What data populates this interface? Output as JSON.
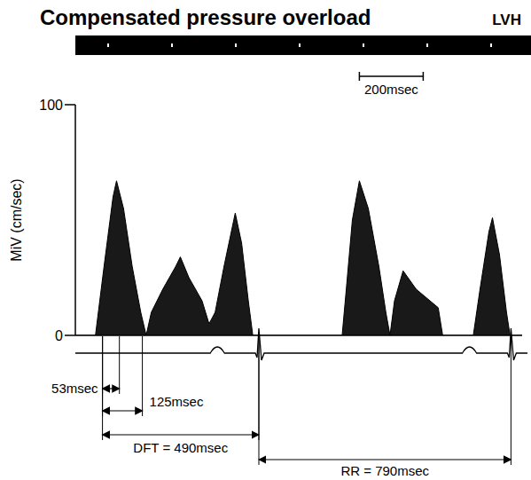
{
  "chart_data": {
    "type": "area",
    "title": "Compensated pressure overload",
    "subtitle": "LVH",
    "y_label": "MiV (cm/sec)",
    "x": [
      0,
      63,
      90,
      118,
      129,
      151,
      178,
      205,
      222,
      238,
      274,
      315,
      329,
      356,
      397,
      419,
      438,
      466,
      501,
      521,
      542,
      556,
      836,
      849,
      868,
      890,
      918,
      951,
      973,
      986,
      1000,
      1027,
      1068,
      1137,
      1151,
      1247,
      1268,
      1296,
      1307,
      1329,
      1351,
      1362,
      1400
    ],
    "values": [
      0,
      0,
      30,
      60,
      67,
      55,
      30,
      10,
      0,
      10,
      20,
      30,
      34,
      25,
      15,
      5,
      10,
      30,
      53,
      40,
      15,
      0,
      0,
      20,
      50,
      67,
      55,
      30,
      10,
      0,
      15,
      28,
      20,
      12,
      0,
      0,
      20,
      45,
      51,
      35,
      10,
      0,
      0
    ],
    "color": "#000000",
    "xlim": [
      0,
      1400
    ],
    "ylim": [
      0,
      100
    ],
    "yticks": [
      0,
      100
    ],
    "tick_labels": "y",
    "intervals": [
      {
        "label": "53msec",
        "from": 85,
        "to": 138
      },
      {
        "label": "125msec",
        "from": 85,
        "to": 210
      },
      {
        "label": "DFT = 490msec",
        "from": 85,
        "to": 575
      },
      {
        "label": "RR = 790msec",
        "from": 575,
        "to": 1365
      },
      {
        "label": "200msec",
        "from": 890,
        "to": 1090
      }
    ]
  }
}
